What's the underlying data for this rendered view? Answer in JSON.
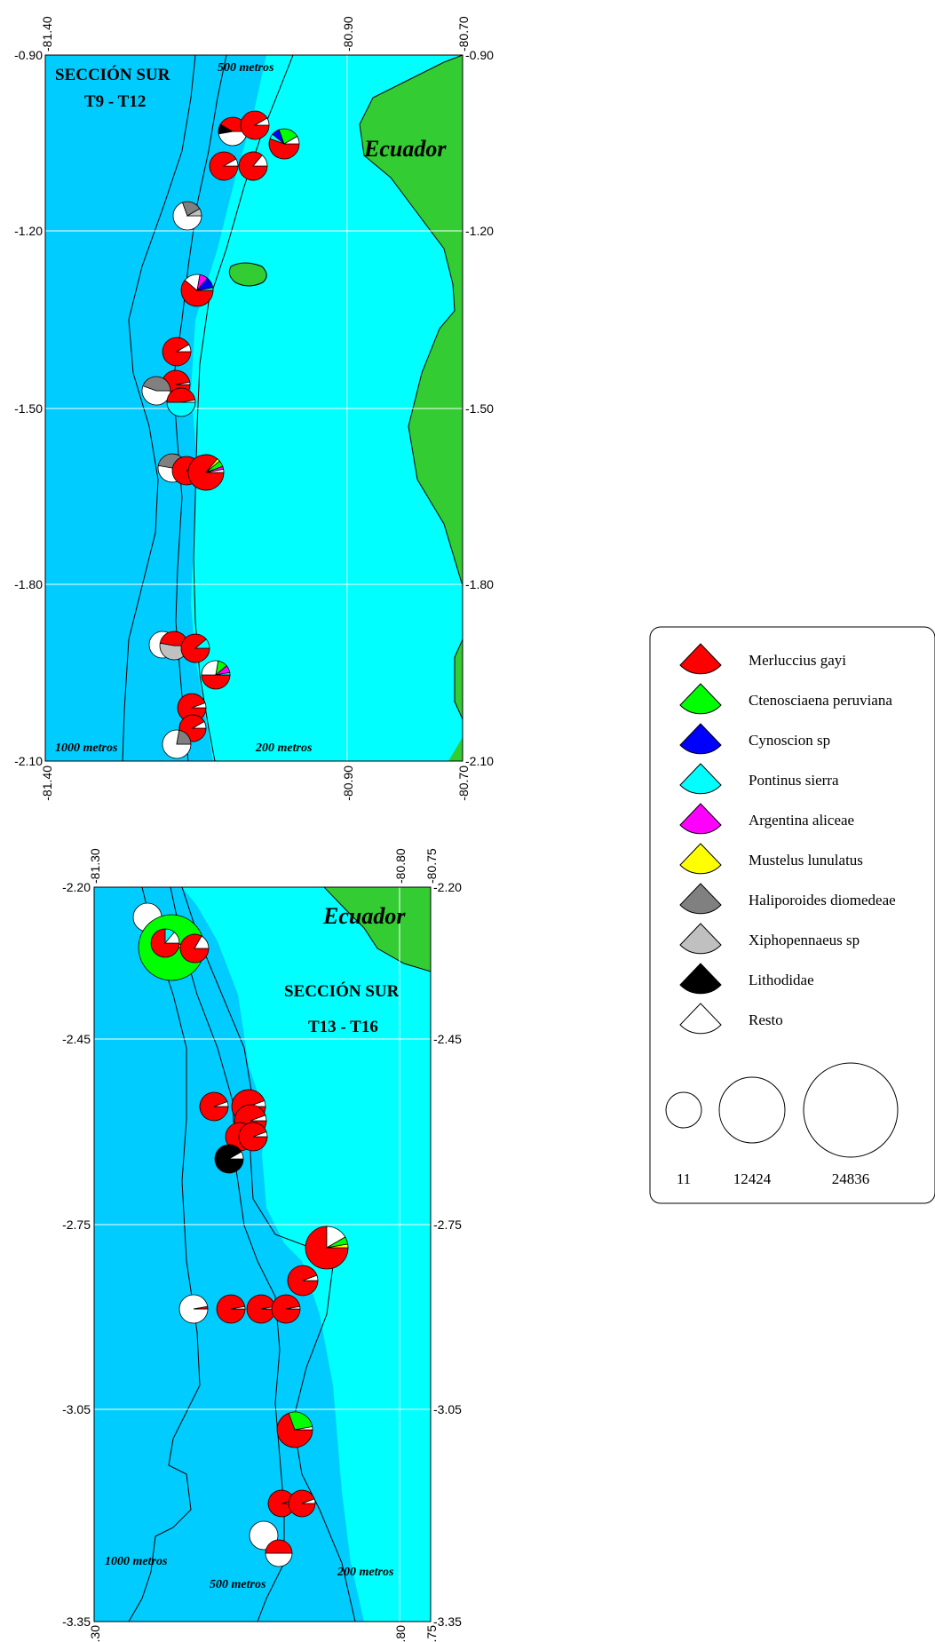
{
  "maps": [
    {
      "title1": "SECCIÓN SUR",
      "title2": "T9 - T12",
      "country": "Ecuador",
      "contours": [
        "500 metros",
        "1000 metros",
        "200 metros"
      ],
      "x_ticks": [
        "-81.40",
        "-80.90",
        "-80.70"
      ],
      "y_ticks": [
        "-0.90",
        "-1.20",
        "-1.50",
        "-1.80",
        "-2.10"
      ]
    },
    {
      "title1": "SECCIÓN SUR",
      "title2": "T13 - T16",
      "country": "Ecuador",
      "contours": [
        "1000 metros",
        "500 metros",
        "200 metros"
      ],
      "x_ticks": [
        "-81.30",
        "-80.80",
        "-80.75"
      ],
      "y_ticks": [
        "-2.20",
        "-2.45",
        "-2.75",
        "-3.05",
        "-3.35"
      ]
    }
  ],
  "legend": {
    "species": [
      {
        "name": "Merluccius gayi",
        "color": "#ff0000"
      },
      {
        "name": "Ctenosciaena peruviana",
        "color": "#00ff00"
      },
      {
        "name": "Cynoscion sp",
        "color": "#0000ff"
      },
      {
        "name": "Pontinus sierra",
        "color": "#00ffff"
      },
      {
        "name": "Argentina aliceae",
        "color": "#ff00ff"
      },
      {
        "name": "Mustelus lunulatus",
        "color": "#ffff00"
      },
      {
        "name": "Haliporoides diomedeae",
        "color": "#808080"
      },
      {
        "name": "Xiphopennaeus sp",
        "color": "#c0c0c0"
      },
      {
        "name": "Lithodidae",
        "color": "#000000"
      },
      {
        "name": "Resto",
        "color": "#ffffff"
      }
    ],
    "sizes": [
      "11",
      "12424",
      "24836"
    ]
  },
  "colors": {
    "deep_water": "#00ccff",
    "shelf_water": "#00ffff",
    "land": "#33cc33"
  }
}
